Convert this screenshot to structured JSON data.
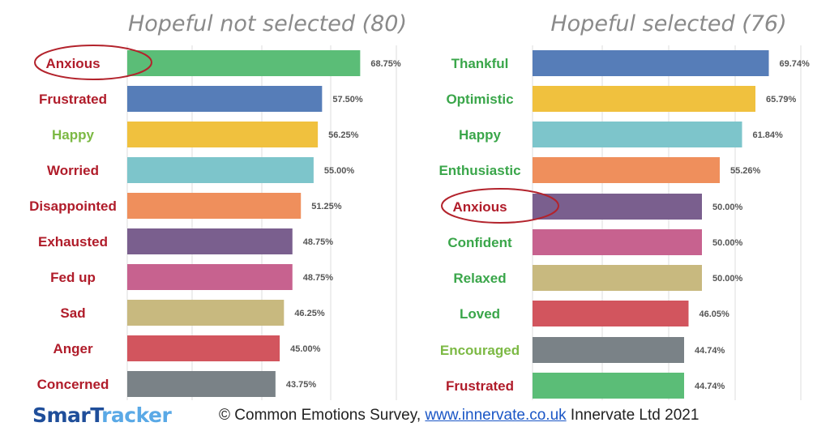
{
  "chart_data": [
    {
      "type": "bar",
      "orientation": "horizontal",
      "title": "Hopeful not selected (80)",
      "categories": [
        "Anxious",
        "Frustrated",
        "Happy",
        "Worried",
        "Disappointed",
        "Exhausted",
        "Fed up",
        "Sad",
        "Anger",
        "Concerned"
      ],
      "values": [
        68.75,
        57.5,
        56.25,
        55.0,
        51.25,
        48.75,
        48.75,
        46.25,
        45.0,
        43.75
      ],
      "value_labels": [
        "68.75%",
        "57.50%",
        "56.25%",
        "55.00%",
        "51.25%",
        "48.75%",
        "48.75%",
        "46.25%",
        "45.00%",
        "43.75%"
      ],
      "bar_colors": [
        "#5bbd77",
        "#567db8",
        "#f0c13e",
        "#7dc5cb",
        "#ef8f5c",
        "#7a5f8e",
        "#c7628f",
        "#c8b97f",
        "#d2555e",
        "#7a8287"
      ],
      "label_colors": [
        "#b01c2a",
        "#b01c2a",
        "#7cb944",
        "#b01c2a",
        "#b01c2a",
        "#b01c2a",
        "#b01c2a",
        "#b01c2a",
        "#b01c2a",
        "#b01c2a"
      ],
      "highlighted": [
        "Anxious"
      ],
      "grid": true
    },
    {
      "type": "bar",
      "orientation": "horizontal",
      "title": "Hopeful selected (76)",
      "categories": [
        "Thankful",
        "Optimistic",
        "Happy",
        "Enthusiastic",
        "Anxious",
        "Confident",
        "Relaxed",
        "Loved",
        "Encouraged",
        "Frustrated"
      ],
      "values": [
        69.74,
        65.79,
        61.84,
        55.26,
        50.0,
        50.0,
        50.0,
        46.05,
        44.74,
        44.74
      ],
      "value_labels": [
        "69.74%",
        "65.79%",
        "61.84%",
        "55.26%",
        "50.00%",
        "50.00%",
        "50.00%",
        "46.05%",
        "44.74%",
        "44.74%"
      ],
      "bar_colors": [
        "#567db8",
        "#f0c13e",
        "#7dc5cb",
        "#ef8f5c",
        "#7a5f8e",
        "#c7628f",
        "#c8b97f",
        "#d2555e",
        "#7a8287",
        "#5bbd77"
      ],
      "label_colors": [
        "#3aa64a",
        "#3aa64a",
        "#3aa64a",
        "#3aa64a",
        "#b01c2a",
        "#3aa64a",
        "#3aa64a",
        "#3aa64a",
        "#7cb944",
        "#b01c2a"
      ],
      "highlighted": [
        "Anxious"
      ],
      "grid": true
    }
  ],
  "footer": {
    "logo_part1": "SmarT",
    "logo_part2": "racker",
    "credit_prefix": "© Common Emotions Survey, ",
    "credit_link": "www.innervate.co.uk",
    "credit_suffix": " Innervate Ltd 2021"
  }
}
